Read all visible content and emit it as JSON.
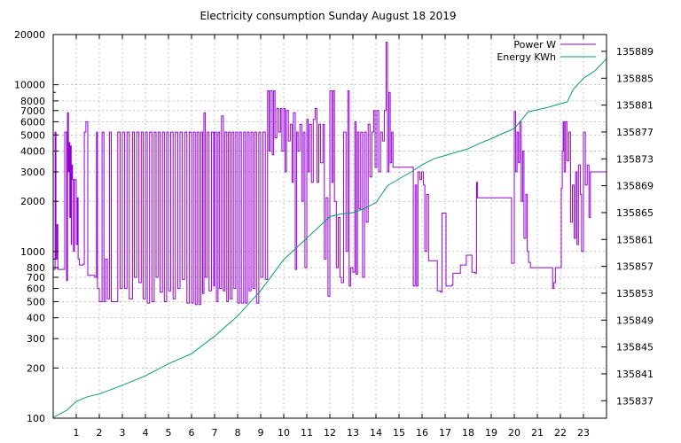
{
  "chart_data": {
    "type": "line",
    "title": "Electricity consumption Sunday August 18 2019",
    "xlabel": "",
    "ylabel": "",
    "y2label": "",
    "grid": true,
    "legend_position": "top-right",
    "x_range": [
      0,
      24
    ],
    "x_ticks": [
      1,
      2,
      3,
      4,
      5,
      6,
      7,
      8,
      9,
      10,
      11,
      12,
      13,
      14,
      15,
      16,
      17,
      18,
      19,
      20,
      21,
      22,
      23
    ],
    "y_scale": "log",
    "y_range": [
      100,
      20000
    ],
    "y_ticks": [
      100,
      200,
      300,
      400,
      500,
      600,
      700,
      800,
      1000,
      2000,
      3000,
      4000,
      5000,
      6000,
      7000,
      8000,
      10000,
      20000
    ],
    "y2_range": [
      135834.4,
      135891.5
    ],
    "y2_ticks": [
      135837,
      135841,
      135845,
      135849,
      135853,
      135857,
      135861,
      135865,
      135869,
      135873,
      135877,
      135881,
      135885,
      135889
    ],
    "series": [
      {
        "name": "Power W",
        "axis": "y1",
        "color": "#9400d3",
        "points": [
          [
            0.0,
            780
          ],
          [
            0.08,
            5200
          ],
          [
            0.12,
            900
          ],
          [
            0.16,
            1450
          ],
          [
            0.2,
            780
          ],
          [
            0.45,
            780
          ],
          [
            0.5,
            5200
          ],
          [
            0.58,
            670
          ],
          [
            0.62,
            6800
          ],
          [
            0.66,
            3000
          ],
          [
            0.7,
            4500
          ],
          [
            0.72,
            1600
          ],
          [
            0.75,
            4300
          ],
          [
            0.78,
            1100
          ],
          [
            0.8,
            3300
          ],
          [
            0.84,
            2700
          ],
          [
            0.88,
            1000
          ],
          [
            0.92,
            2700
          ],
          [
            1.0,
            1100
          ],
          [
            1.05,
            2100
          ],
          [
            1.08,
            900
          ],
          [
            1.14,
            830
          ],
          [
            1.3,
            840
          ],
          [
            1.35,
            5200
          ],
          [
            1.42,
            6000
          ],
          [
            1.5,
            720
          ],
          [
            1.8,
            700
          ],
          [
            1.88,
            5200
          ],
          [
            1.92,
            600
          ],
          [
            2.0,
            500
          ],
          [
            2.12,
            5200
          ],
          [
            2.2,
            500
          ],
          [
            2.27,
            900
          ],
          [
            2.35,
            520
          ],
          [
            2.44,
            5200
          ],
          [
            2.52,
            500
          ],
          [
            2.7,
            500
          ],
          [
            2.8,
            5200
          ],
          [
            2.9,
            600
          ],
          [
            3.0,
            5200
          ],
          [
            3.1,
            600
          ],
          [
            3.2,
            5200
          ],
          [
            3.3,
            520
          ],
          [
            3.44,
            5200
          ],
          [
            3.52,
            700
          ],
          [
            3.62,
            5200
          ],
          [
            3.72,
            650
          ],
          [
            3.82,
            5200
          ],
          [
            3.9,
            520
          ],
          [
            4.0,
            5200
          ],
          [
            4.08,
            490
          ],
          [
            4.18,
            5200
          ],
          [
            4.28,
            500
          ],
          [
            4.38,
            5200
          ],
          [
            4.46,
            700
          ],
          [
            4.55,
            5200
          ],
          [
            4.64,
            570
          ],
          [
            4.74,
            5200
          ],
          [
            4.82,
            500
          ],
          [
            4.92,
            5200
          ],
          [
            5.0,
            580
          ],
          [
            5.1,
            5200
          ],
          [
            5.2,
            520
          ],
          [
            5.3,
            5200
          ],
          [
            5.4,
            600
          ],
          [
            5.5,
            5200
          ],
          [
            5.6,
            680
          ],
          [
            5.7,
            5200
          ],
          [
            5.8,
            490
          ],
          [
            5.9,
            5200
          ],
          [
            6.0,
            490
          ],
          [
            6.08,
            5200
          ],
          [
            6.16,
            480
          ],
          [
            6.24,
            5200
          ],
          [
            6.32,
            480
          ],
          [
            6.4,
            5200
          ],
          [
            6.48,
            560
          ],
          [
            6.54,
            6800
          ],
          [
            6.6,
            700
          ],
          [
            6.68,
            5200
          ],
          [
            6.76,
            580
          ],
          [
            6.86,
            5200
          ],
          [
            6.96,
            620
          ],
          [
            7.0,
            5200
          ],
          [
            7.08,
            500
          ],
          [
            7.15,
            5200
          ],
          [
            7.22,
            600
          ],
          [
            7.3,
            6500
          ],
          [
            7.38,
            580
          ],
          [
            7.45,
            5200
          ],
          [
            7.53,
            500
          ],
          [
            7.6,
            5200
          ],
          [
            7.68,
            520
          ],
          [
            7.76,
            5200
          ],
          [
            7.84,
            600
          ],
          [
            7.92,
            5200
          ],
          [
            8.0,
            490
          ],
          [
            8.08,
            5200
          ],
          [
            8.16,
            490
          ],
          [
            8.26,
            5200
          ],
          [
            8.34,
            490
          ],
          [
            8.42,
            5200
          ],
          [
            8.5,
            580
          ],
          [
            8.58,
            5200
          ],
          [
            8.66,
            600
          ],
          [
            8.74,
            5200
          ],
          [
            8.82,
            490
          ],
          [
            8.92,
            5200
          ],
          [
            9.0,
            700
          ],
          [
            9.1,
            5200
          ],
          [
            9.2,
            680
          ],
          [
            9.3,
            9200
          ],
          [
            9.36,
            4000
          ],
          [
            9.42,
            9200
          ],
          [
            9.5,
            3800
          ],
          [
            9.56,
            9200
          ],
          [
            9.62,
            4800
          ],
          [
            9.7,
            7200
          ],
          [
            9.78,
            5200
          ],
          [
            9.86,
            7200
          ],
          [
            9.92,
            4000
          ],
          [
            10.0,
            7200
          ],
          [
            10.06,
            3000
          ],
          [
            10.12,
            7000
          ],
          [
            10.2,
            4600
          ],
          [
            10.28,
            5800
          ],
          [
            10.36,
            2600
          ],
          [
            10.42,
            6800
          ],
          [
            10.5,
            780
          ],
          [
            10.56,
            5200
          ],
          [
            10.62,
            4000
          ],
          [
            10.7,
            5800
          ],
          [
            10.78,
            2000
          ],
          [
            10.85,
            5200
          ],
          [
            10.92,
            800
          ],
          [
            11.0,
            6200
          ],
          [
            11.06,
            3000
          ],
          [
            11.12,
            5800
          ],
          [
            11.2,
            2600
          ],
          [
            11.28,
            6200
          ],
          [
            11.36,
            7200
          ],
          [
            11.44,
            2600
          ],
          [
            11.52,
            5800
          ],
          [
            11.6,
            3400
          ],
          [
            11.7,
            5800
          ],
          [
            11.76,
            900
          ],
          [
            11.84,
            2100
          ],
          [
            11.92,
            540
          ],
          [
            12.0,
            9200
          ],
          [
            12.08,
            2600
          ],
          [
            12.14,
            9200
          ],
          [
            12.2,
            2000
          ],
          [
            12.28,
            800
          ],
          [
            12.36,
            1600
          ],
          [
            12.44,
            700
          ],
          [
            12.5,
            650
          ],
          [
            12.6,
            5200
          ],
          [
            12.7,
            1000
          ],
          [
            12.78,
            9200
          ],
          [
            12.84,
            620
          ],
          [
            12.9,
            800
          ],
          [
            13.0,
            750
          ],
          [
            13.08,
            6000
          ],
          [
            13.14,
            730
          ],
          [
            13.2,
            5200
          ],
          [
            13.26,
            1800
          ],
          [
            13.34,
            5200
          ],
          [
            13.42,
            700
          ],
          [
            13.5,
            5200
          ],
          [
            13.58,
            1500
          ],
          [
            13.66,
            5800
          ],
          [
            13.74,
            2800
          ],
          [
            13.82,
            5200
          ],
          [
            13.9,
            7000
          ],
          [
            13.96,
            3200
          ],
          [
            14.04,
            7000
          ],
          [
            14.12,
            3000
          ],
          [
            14.2,
            5200
          ],
          [
            14.28,
            4600
          ],
          [
            14.36,
            7000
          ],
          [
            14.44,
            18000
          ],
          [
            14.5,
            3000
          ],
          [
            14.56,
            9000
          ],
          [
            14.62,
            3400
          ],
          [
            14.68,
            5200
          ],
          [
            14.74,
            3200
          ],
          [
            15.0,
            3200
          ],
          [
            15.6,
            3200
          ],
          [
            15.62,
            620
          ],
          [
            15.7,
            2500
          ],
          [
            15.76,
            620
          ],
          [
            15.82,
            3000
          ],
          [
            15.9,
            2700
          ],
          [
            15.98,
            3000
          ],
          [
            16.06,
            2500
          ],
          [
            16.12,
            1000
          ],
          [
            16.2,
            2200
          ],
          [
            16.28,
            880
          ],
          [
            16.4,
            880
          ],
          [
            16.6,
            880
          ],
          [
            16.66,
            580
          ],
          [
            16.8,
            570
          ],
          [
            16.86,
            1700
          ],
          [
            17.0,
            1700
          ],
          [
            17.04,
            620
          ],
          [
            17.3,
            630
          ],
          [
            17.34,
            740
          ],
          [
            17.6,
            740
          ],
          [
            17.66,
            830
          ],
          [
            17.86,
            830
          ],
          [
            17.92,
            950
          ],
          [
            18.1,
            950
          ],
          [
            18.16,
            750
          ],
          [
            18.3,
            740
          ],
          [
            18.36,
            2600
          ],
          [
            18.4,
            2100
          ],
          [
            19.8,
            2100
          ],
          [
            19.88,
            850
          ],
          [
            20.0,
            6900
          ],
          [
            20.06,
            3000
          ],
          [
            20.12,
            5200
          ],
          [
            20.18,
            3400
          ],
          [
            20.24,
            6000
          ],
          [
            20.3,
            2000
          ],
          [
            20.36,
            4000
          ],
          [
            20.42,
            1200
          ],
          [
            20.5,
            2200
          ],
          [
            20.56,
            1000
          ],
          [
            20.62,
            860
          ],
          [
            20.7,
            800
          ],
          [
            21.0,
            800
          ],
          [
            21.6,
            800
          ],
          [
            21.66,
            600
          ],
          [
            21.72,
            650
          ],
          [
            21.78,
            800
          ],
          [
            22.0,
            800
          ],
          [
            22.04,
            2400
          ],
          [
            22.08,
            4000
          ],
          [
            22.12,
            6000
          ],
          [
            22.16,
            3000
          ],
          [
            22.22,
            6000
          ],
          [
            22.28,
            3500
          ],
          [
            22.36,
            5200
          ],
          [
            22.44,
            1500
          ],
          [
            22.52,
            2500
          ],
          [
            22.6,
            1200
          ],
          [
            22.66,
            3000
          ],
          [
            22.72,
            1100
          ],
          [
            22.78,
            3300
          ],
          [
            22.86,
            2200
          ],
          [
            22.92,
            1000
          ],
          [
            23.0,
            5200
          ],
          [
            23.08,
            2500
          ],
          [
            23.16,
            3300
          ],
          [
            23.24,
            1600
          ],
          [
            23.3,
            3000
          ],
          [
            24.0,
            3000
          ]
        ]
      },
      {
        "name": "Energy KWh",
        "axis": "y2",
        "color": "#009e73",
        "points": [
          [
            0.0,
            135834.5
          ],
          [
            0.6,
            135835.6
          ],
          [
            1.0,
            135836.9
          ],
          [
            1.5,
            135837.6
          ],
          [
            2.0,
            135838.0
          ],
          [
            3.0,
            135839.3
          ],
          [
            4.0,
            135840.7
          ],
          [
            5.0,
            135842.5
          ],
          [
            6.0,
            135844.0
          ],
          [
            7.0,
            135846.6
          ],
          [
            8.0,
            135849.6
          ],
          [
            9.0,
            135853.4
          ],
          [
            10.0,
            135858.0
          ],
          [
            11.0,
            135861.2
          ],
          [
            12.0,
            135864.4
          ],
          [
            12.5,
            135864.8
          ],
          [
            13.0,
            135865.0
          ],
          [
            13.5,
            135865.6
          ],
          [
            14.0,
            135866.5
          ],
          [
            14.5,
            135869.0
          ],
          [
            15.0,
            135870.0
          ],
          [
            15.5,
            135871.0
          ],
          [
            16.0,
            135872.1
          ],
          [
            16.5,
            135873.0
          ],
          [
            17.0,
            135873.5
          ],
          [
            17.5,
            135874.0
          ],
          [
            18.0,
            135874.5
          ],
          [
            18.5,
            135875.3
          ],
          [
            19.0,
            135876.0
          ],
          [
            19.5,
            135876.8
          ],
          [
            20.0,
            135877.5
          ],
          [
            20.6,
            135880.0
          ],
          [
            21.0,
            135880.3
          ],
          [
            21.5,
            135880.7
          ],
          [
            22.0,
            135881.2
          ],
          [
            22.3,
            135881.5
          ],
          [
            22.55,
            135883.3
          ],
          [
            23.0,
            135885.0
          ],
          [
            23.5,
            135886.1
          ],
          [
            24.0,
            135887.9
          ]
        ]
      }
    ]
  }
}
